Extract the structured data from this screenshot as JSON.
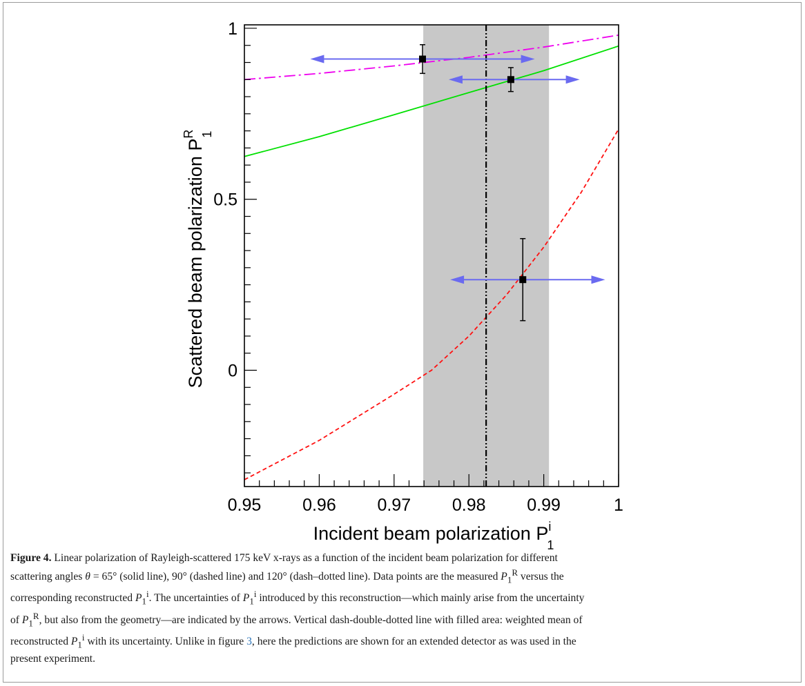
{
  "colors": {
    "solid_line": "#00e000",
    "dashed_line": "#ff1010",
    "dash_dotted_line": "#ee00ee",
    "arrows": "#6a6af0",
    "band": "#c8c8c8",
    "points": "#000000"
  },
  "chart_data": {
    "type": "line",
    "xlabel": "Incident beam polarization P",
    "xlabel_sup": "i",
    "xlabel_sub": "1",
    "ylabel": "Scattered beam polarization P",
    "ylabel_sup": "R",
    "ylabel_sub": "1",
    "xlim": [
      0.95,
      1.0
    ],
    "ylim": [
      -0.34,
      1.01
    ],
    "x_ticks": [
      0.95,
      0.96,
      0.97,
      0.98,
      0.99,
      1.0
    ],
    "x_tick_labels": [
      "0.95",
      "0.96",
      "0.97",
      "0.98",
      "0.99",
      "1"
    ],
    "y_ticks": [
      0,
      0.5,
      1
    ],
    "y_tick_labels": [
      "0",
      "0.5",
      "1"
    ],
    "grid": false,
    "series": [
      {
        "style": "solid",
        "x": [
          0.95,
          0.96,
          0.97,
          0.98,
          0.99,
          1.0
        ],
        "y": [
          0.625,
          0.683,
          0.747,
          0.812,
          0.876,
          0.948
        ]
      },
      {
        "style": "dashed",
        "x": [
          0.95,
          0.96,
          0.97,
          0.975,
          0.98,
          0.985,
          0.99,
          0.995,
          1.0
        ],
        "y": [
          -0.32,
          -0.205,
          -0.07,
          0.0,
          0.1,
          0.22,
          0.36,
          0.52,
          0.705
        ]
      },
      {
        "style": "dash-dotted",
        "x": [
          0.95,
          0.96,
          0.97,
          0.98,
          0.99,
          1.0
        ],
        "y": [
          0.85,
          0.868,
          0.89,
          0.915,
          0.945,
          0.98
        ]
      }
    ],
    "points": [
      {
        "x": 0.9738,
        "y": 0.91,
        "yerr": 0.042,
        "x_arrow": [
          0.9588,
          0.9888
        ]
      },
      {
        "x": 0.9856,
        "y": 0.85,
        "yerr": 0.035,
        "x_arrow": [
          0.9773,
          0.9948
        ]
      },
      {
        "x": 0.9872,
        "y": 0.265,
        "yerr": 0.12,
        "x_arrow": [
          0.9775,
          0.9982
        ]
      }
    ],
    "weighted_mean": 0.9823,
    "band": [
      0.9739,
      0.9907
    ]
  },
  "caption": {
    "label": "Figure 4.",
    "l1": " Linear polarization of Rayleigh-scattered 175 keV x-rays as a function of the incident beam polarization for different",
    "l2a": "scattering angles ",
    "theta": "θ",
    "l2b": " = 65° (solid line), 90° (dashed line) and 120° (dash–dotted line). Data points are the measured ",
    "l2c": " versus the",
    "l3a": "corresponding reconstructed ",
    "l3b": ". The uncertainties of ",
    "l3c": " introduced by this reconstruction—which mainly arise from the uncertainty",
    "l4a": "of ",
    "l4b": ", but also from the geometry—are indicated by the arrows. Vertical dash-double-dotted line with filled area: weighted mean of",
    "l5a": "reconstructed ",
    "l5b": " with its uncertainty. Unlike in figure ",
    "fig_ref": "3",
    "l5c": ", here the predictions are shown for an extended detector as was used in the",
    "l6": "present experiment.",
    "sym_P": "P",
    "sym_sub": "1",
    "sym_R": "R",
    "sym_i": "i"
  }
}
